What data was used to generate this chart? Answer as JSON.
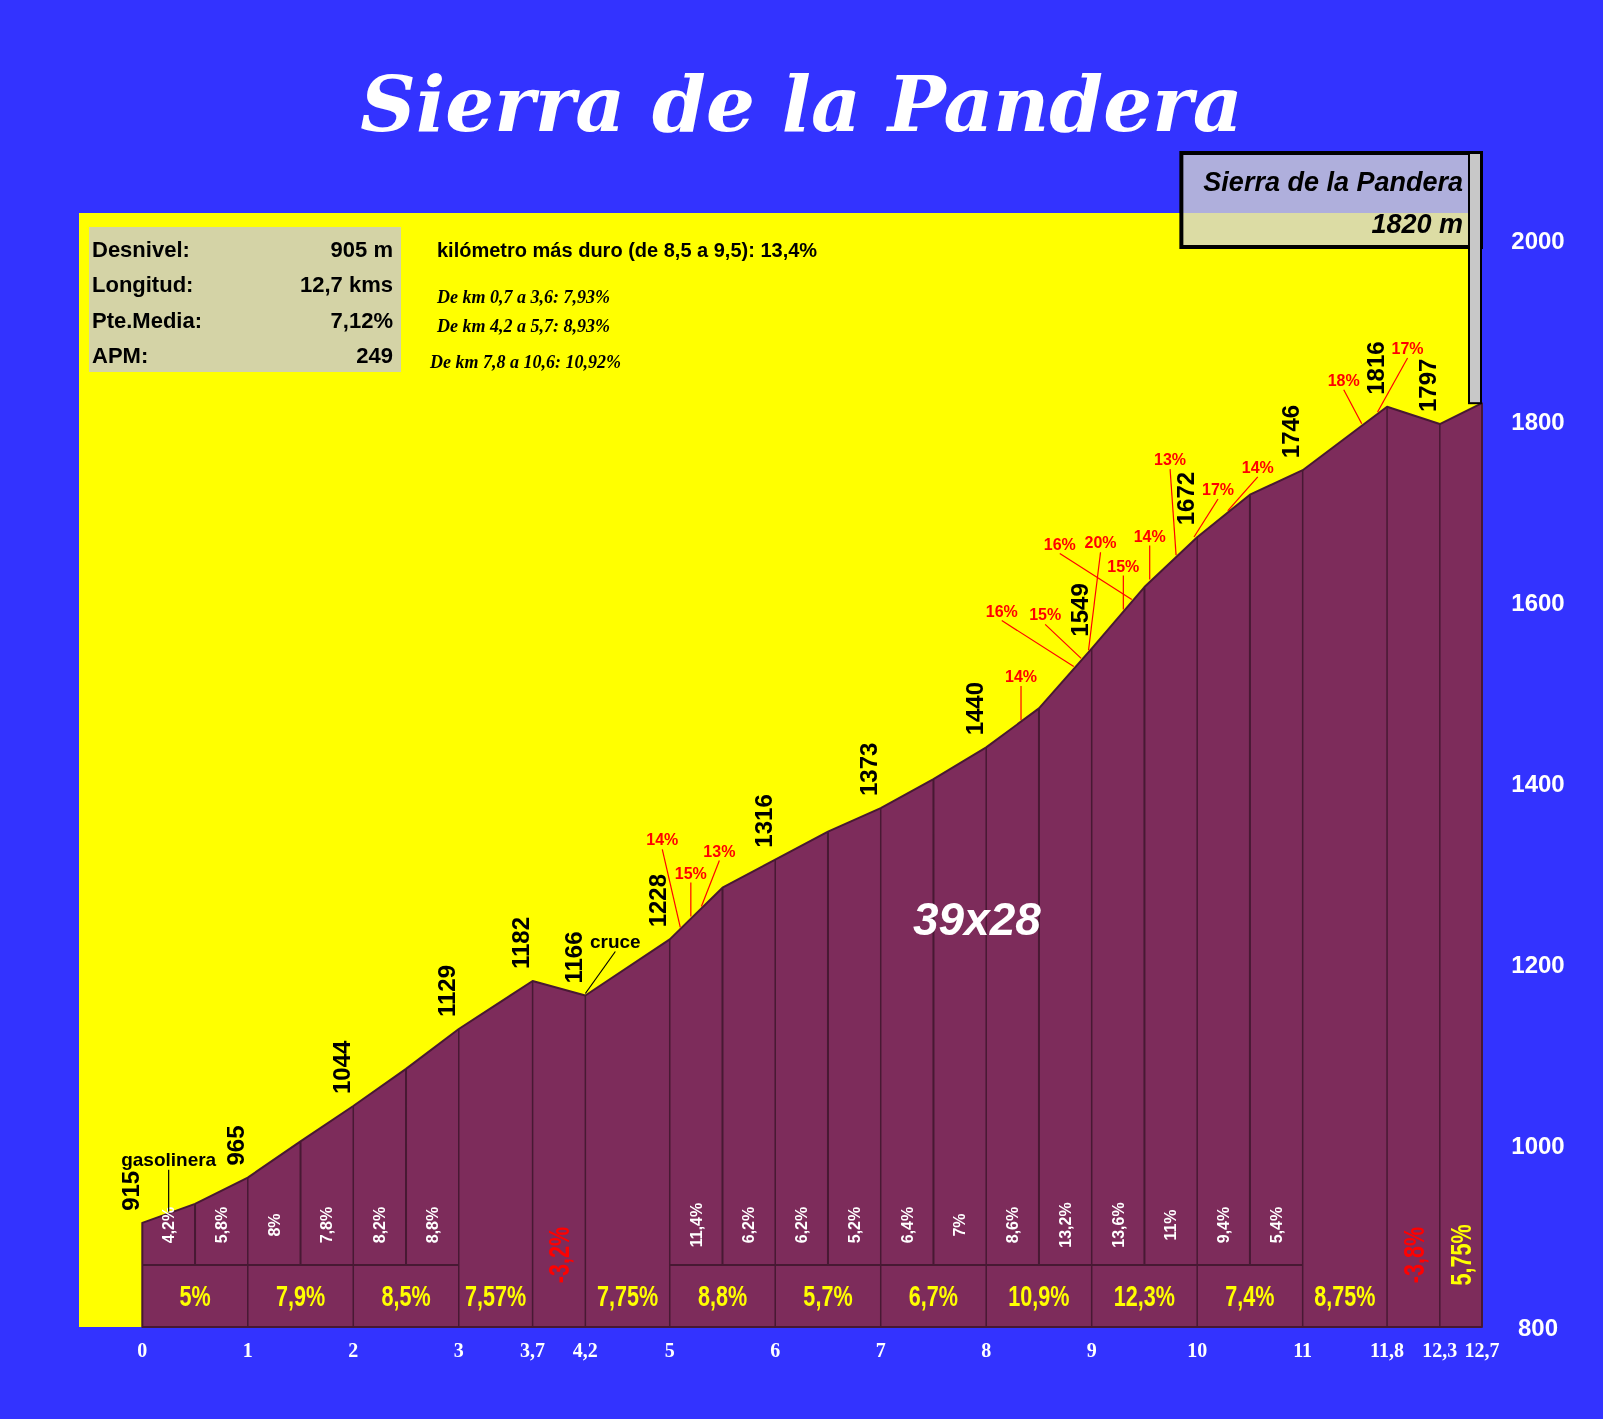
{
  "chart_data": {
    "type": "area",
    "title": "Sierra de la Pandera",
    "x": [
      0,
      0.5,
      1,
      1.5,
      2,
      2.5,
      3,
      3.7,
      4.2,
      5,
      5.5,
      6,
      6.5,
      7,
      7.5,
      8,
      8.5,
      9,
      9.5,
      10,
      10.5,
      11,
      11.8,
      12.3,
      12.7
    ],
    "values": [
      915,
      936,
      965,
      1005,
      1044,
      1085,
      1129,
      1182,
      1166,
      1228,
      1285,
      1316,
      1347,
      1373,
      1405,
      1440,
      1483,
      1549,
      1617,
      1672,
      1719,
      1746,
      1816,
      1797,
      1820
    ],
    "value_labels": [
      "915",
      null,
      "965",
      null,
      "1044",
      null,
      "1129",
      "1182",
      "1166",
      "1228",
      null,
      "1316",
      null,
      "1373",
      null,
      "1440",
      null,
      "1549",
      null,
      "1672",
      null,
      "1746",
      "1816",
      "1797",
      null
    ],
    "color": "#7d2c5b",
    "xlim": [
      -0.6,
      12.7
    ],
    "ylim": [
      800,
      2030
    ],
    "xticks": [
      0,
      1,
      2,
      3,
      {
        "value": 3.7,
        "label": "3,7"
      },
      {
        "value": 4.2,
        "label": "4,2"
      },
      5,
      6,
      7,
      8,
      9,
      10,
      11,
      {
        "value": 11.8,
        "label": "11,8"
      },
      {
        "value": 12.3,
        "label": "12,3"
      },
      {
        "value": 12.7,
        "label": "12,7"
      }
    ],
    "yticks": [
      800,
      1000,
      1200,
      1400,
      1600,
      1800,
      2000
    ],
    "grid": "x",
    "annotations": [
      "Sierra de la Pandera\n1820 m",
      "Desnivel: 905 m",
      "Longitud: 12,7 kms",
      "Pte.Media: 7,12%",
      "APM: 249",
      "kilómetro más duro (de 8,5 a 9,5): 13,4%",
      "De km 0,7 a 3,6: 7,93%",
      "De km 4,2 a 5,7: 8,93%",
      "De km 7,8 a 10,6: 10,92%",
      "39x28",
      "4,2%",
      "5,8%",
      "8%",
      "7,8%",
      "8,2%",
      "8,8%",
      "11,4%",
      "6,2%",
      "6,2%",
      "5,2%",
      "6,4%",
      "7%",
      "8,6%",
      "13,2%",
      "13,6%",
      "11%",
      "9,4%",
      "5,4%",
      "5%",
      "7,9%",
      "8,5%",
      "7,57%",
      "-3,2%",
      "7,75%",
      "8,8%",
      "5,7%",
      "6,7%",
      "10,9%",
      "12,3%",
      "7,4%",
      "8,75%",
      "-3,8%",
      "5,75%",
      {
        "text": "gasolinera",
        "x": 0.25,
        "y": 925
      },
      {
        "text": "cruce",
        "x": 4.2,
        "y": 1166
      },
      {
        "text": "14%",
        "x": 5.1,
        "y": 1239
      },
      {
        "text": "15%",
        "x": 5.2,
        "y": 1251
      },
      {
        "text": "13%",
        "x": 5.3,
        "y": 1262
      },
      {
        "text": "14%",
        "x": 8.33,
        "y": 1468
      },
      {
        "text": "16%",
        "x": 8.83,
        "y": 1527
      },
      {
        "text": "15%",
        "x": 8.9,
        "y": 1536
      },
      {
        "text": "20%",
        "x": 8.97,
        "y": 1545
      },
      {
        "text": "15%",
        "x": 9.3,
        "y": 1590
      },
      {
        "text": "16%",
        "x": 9.38,
        "y": 1601
      },
      {
        "text": "14%",
        "x": 9.55,
        "y": 1623
      },
      {
        "text": "13%",
        "x": 9.8,
        "y": 1650
      },
      {
        "text": "17%",
        "x": 9.97,
        "y": 1670
      },
      {
        "text": "14%",
        "x": 10.29,
        "y": 1699
      },
      {
        "text": "18%",
        "x": 11.56,
        "y": 1795
      },
      {
        "text": "17%",
        "x": 11.71,
        "y": 1808
      }
    ]
  }
}
